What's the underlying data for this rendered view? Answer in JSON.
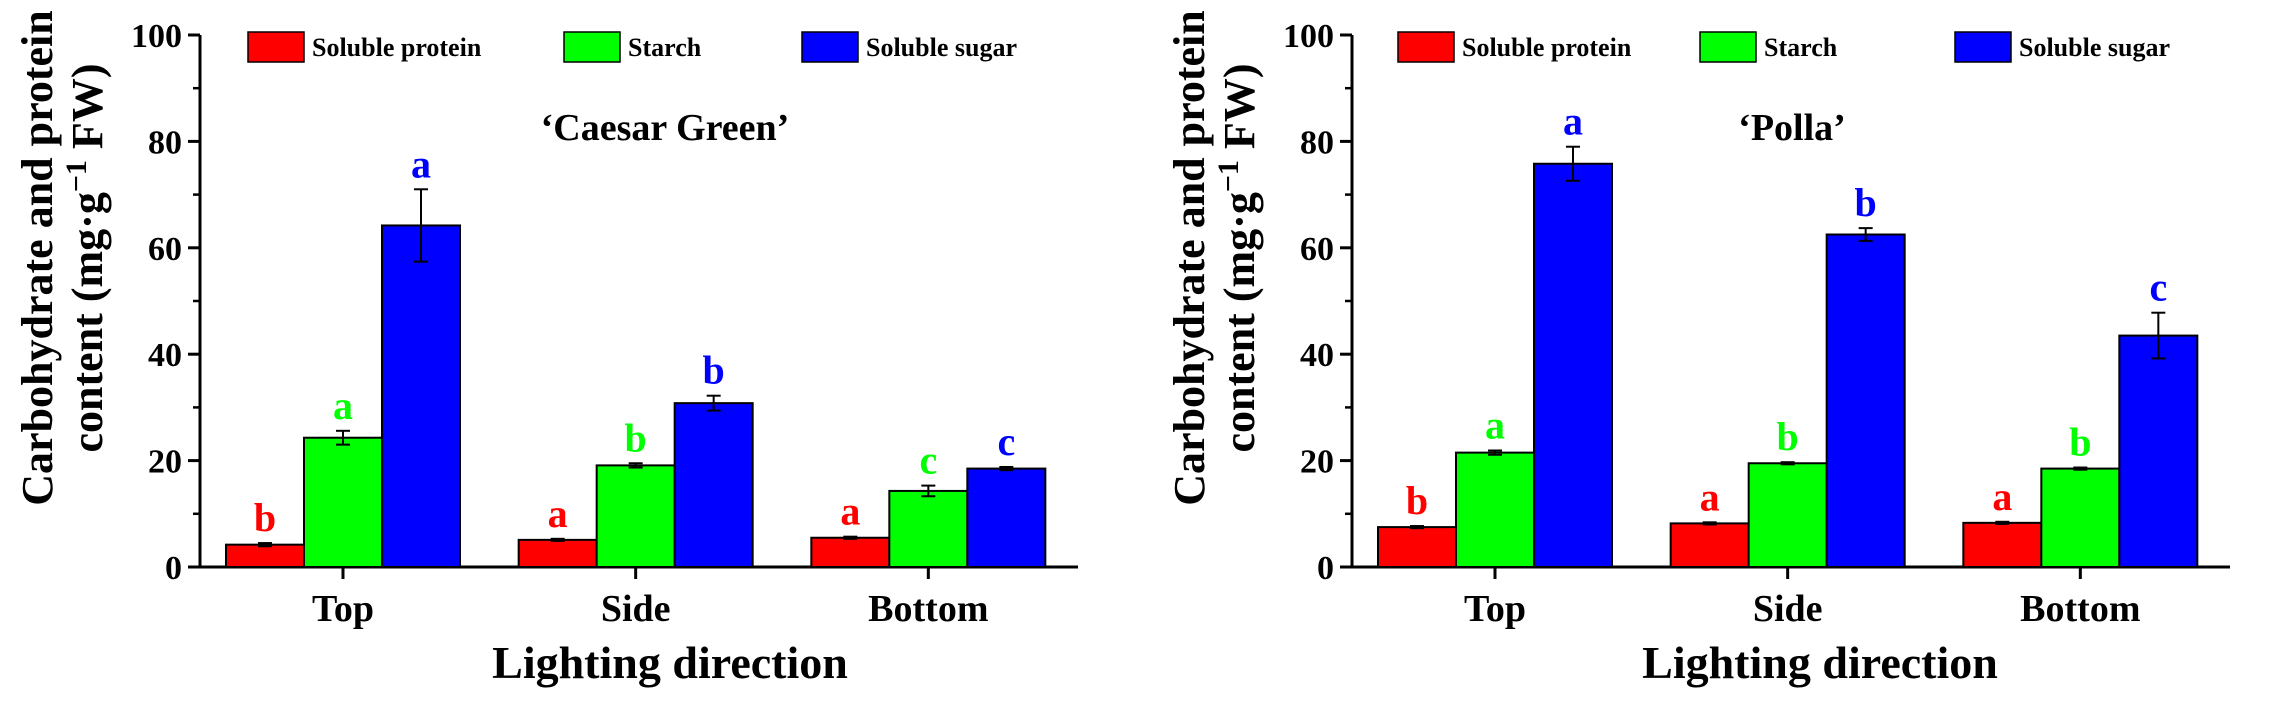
{
  "chart_data": [
    {
      "type": "bar",
      "title": "‘Caesar Green’",
      "xlabel": "Lighting direction",
      "ylabel_line1": "Carbohydrate and protein",
      "ylabel_line2_pre": "content (mg·g",
      "ylabel_line2_sup": "−1",
      "ylabel_line2_post": " FW)",
      "ylim": [
        0,
        100
      ],
      "yticks": [
        "0",
        "20",
        "40",
        "60",
        "80",
        "100"
      ],
      "categories": [
        "Top",
        "Side",
        "Bottom"
      ],
      "series": [
        {
          "name": "Soluble protein",
          "color": "#ff0000",
          "values": [
            4.2,
            5.1,
            5.5
          ],
          "errors": [
            0.3,
            0.2,
            0.2
          ],
          "letters": [
            "b",
            "a",
            "a"
          ]
        },
        {
          "name": "Starch",
          "color": "#00ff00",
          "values": [
            24.3,
            19.1,
            14.3
          ],
          "errors": [
            1.3,
            0.4,
            1.0
          ],
          "letters": [
            "a",
            "b",
            "c"
          ]
        },
        {
          "name": "Soluble sugar",
          "color": "#0000ff",
          "values": [
            64.2,
            30.8,
            18.5
          ],
          "errors": [
            6.8,
            1.4,
            0.3
          ],
          "letters": [
            "a",
            "b",
            "c"
          ]
        }
      ]
    },
    {
      "type": "bar",
      "title": "‘Polla’",
      "xlabel": "Lighting direction",
      "ylabel_line1": "Carbohydrate and protein",
      "ylabel_line2_pre": "content (mg·g",
      "ylabel_line2_sup": "−1",
      "ylabel_line2_post": " FW)",
      "ylim": [
        0,
        100
      ],
      "yticks": [
        "0",
        "20",
        "40",
        "60",
        "80",
        "100"
      ],
      "categories": [
        "Top",
        "Side",
        "Bottom"
      ],
      "series": [
        {
          "name": "Soluble protein",
          "color": "#ff0000",
          "values": [
            7.5,
            8.2,
            8.3
          ],
          "errors": [
            0.2,
            0.2,
            0.2
          ],
          "letters": [
            "b",
            "a",
            "a"
          ]
        },
        {
          "name": "Starch",
          "color": "#00ff00",
          "values": [
            21.5,
            19.5,
            18.5
          ],
          "errors": [
            0.4,
            0.2,
            0.2
          ],
          "letters": [
            "a",
            "b",
            "b"
          ]
        },
        {
          "name": "Soluble sugar",
          "color": "#0000ff",
          "values": [
            75.8,
            62.5,
            43.5
          ],
          "errors": [
            3.2,
            1.2,
            4.3
          ],
          "letters": [
            "a",
            "b",
            "c"
          ]
        }
      ]
    }
  ]
}
